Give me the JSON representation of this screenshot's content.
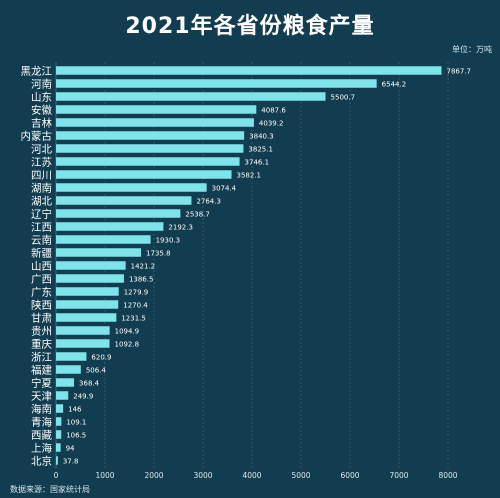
{
  "title": "2021年各省份粮食产量",
  "unit_label": "单位：万吨",
  "source_label": "数据来源：国家统计局",
  "colors": {
    "background": "#123c4f",
    "bar": "#7fe3ea",
    "label": "#ffffff",
    "grid": "#4a7483",
    "tick": "#dbeaf0"
  },
  "chart_data": {
    "type": "bar",
    "orientation": "horizontal",
    "title": "2021年各省份粮食产量",
    "xlabel": "",
    "ylabel": "",
    "unit": "万吨",
    "xlim": [
      0,
      8000
    ],
    "xticks": [
      0,
      1000,
      2000,
      3000,
      4000,
      5000,
      6000,
      7000,
      8000
    ],
    "grid": true,
    "legend": "none",
    "categories": [
      "黑龙江",
      "河南",
      "山东",
      "安徽",
      "吉林",
      "内蒙古",
      "河北",
      "江苏",
      "四川",
      "湖南",
      "湖北",
      "辽宁",
      "江西",
      "云南",
      "新疆",
      "山西",
      "广西",
      "广东",
      "陕西",
      "甘肃",
      "贵州",
      "重庆",
      "浙江",
      "福建",
      "宁夏",
      "天津",
      "海南",
      "青海",
      "西藏",
      "上海",
      "北京"
    ],
    "values": [
      7867.7,
      6544.2,
      5500.7,
      4087.6,
      4039.2,
      3840.3,
      3825.1,
      3746.1,
      3582.1,
      3074.4,
      2764.3,
      2538.7,
      2192.3,
      1930.3,
      1735.8,
      1421.2,
      1386.5,
      1279.9,
      1270.4,
      1231.5,
      1094.9,
      1092.8,
      620.9,
      506.4,
      368.4,
      249.9,
      146,
      109.1,
      106.5,
      94,
      37.8
    ],
    "value_labels": [
      "7867.7",
      "6544.2",
      "5500.7",
      "4087.6",
      "4039.2",
      "3840.3",
      "3825.1",
      "3746.1",
      "3582.1",
      "3074.4",
      "2764.3",
      "2538.7",
      "2192.3",
      "1930.3",
      "1735.8",
      "1421.2",
      "1386.5",
      "1279.9",
      "1270.4",
      "1231.5",
      "1094.9",
      "1092.8",
      "620.9",
      "506.4",
      "368.4",
      "249.9",
      "146",
      "109.1",
      "106.5",
      "94",
      "37.8"
    ]
  }
}
